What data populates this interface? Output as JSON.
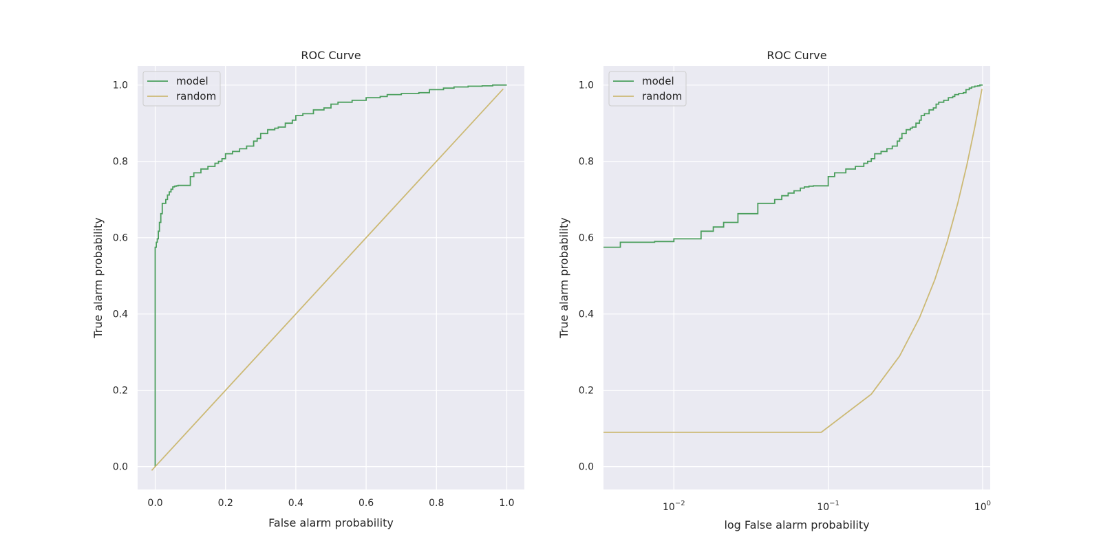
{
  "chart_data": [
    {
      "type": "line",
      "title": "ROC Curve",
      "xlabel": "False alarm probability",
      "ylabel": "True alarm probability",
      "xscale": "linear",
      "xlim": [
        -0.05,
        1.05
      ],
      "ylim": [
        -0.06,
        1.05
      ],
      "xticks": [
        0.0,
        0.2,
        0.4,
        0.6,
        0.8,
        1.0
      ],
      "xtick_labels": [
        "0.0",
        "0.2",
        "0.4",
        "0.6",
        "0.8",
        "1.0"
      ],
      "yticks": [
        0.0,
        0.2,
        0.4,
        0.6,
        0.8,
        1.0
      ],
      "ytick_labels": [
        "0.0",
        "0.2",
        "0.4",
        "0.6",
        "0.8",
        "1.0"
      ],
      "grid": true,
      "legend_position": "upper left",
      "series": [
        {
          "name": "model",
          "color": "#4a9e5c",
          "step": true,
          "x": [
            0.0,
            0.0,
            0.003,
            0.006,
            0.009,
            0.012,
            0.016,
            0.02,
            0.03,
            0.035,
            0.04,
            0.045,
            0.05,
            0.055,
            0.06,
            0.065,
            0.07,
            0.1,
            0.11,
            0.13,
            0.15,
            0.17,
            0.18,
            0.19,
            0.2,
            0.22,
            0.24,
            0.26,
            0.28,
            0.29,
            0.3,
            0.32,
            0.34,
            0.35,
            0.37,
            0.39,
            0.4,
            0.42,
            0.45,
            0.48,
            0.5,
            0.52,
            0.56,
            0.6,
            0.64,
            0.66,
            0.7,
            0.75,
            0.78,
            0.82,
            0.85,
            0.89,
            0.93,
            0.96,
            1.0
          ],
          "y": [
            0.0,
            0.575,
            0.588,
            0.597,
            0.617,
            0.64,
            0.663,
            0.69,
            0.7,
            0.712,
            0.72,
            0.727,
            0.733,
            0.735,
            0.736,
            0.737,
            0.737,
            0.76,
            0.77,
            0.78,
            0.787,
            0.795,
            0.8,
            0.807,
            0.82,
            0.826,
            0.833,
            0.84,
            0.853,
            0.86,
            0.873,
            0.883,
            0.887,
            0.89,
            0.9,
            0.908,
            0.92,
            0.925,
            0.935,
            0.94,
            0.95,
            0.955,
            0.96,
            0.967,
            0.97,
            0.975,
            0.978,
            0.98,
            0.988,
            0.992,
            0.995,
            0.997,
            0.998,
            1.0,
            1.0
          ]
        },
        {
          "name": "random",
          "color": "#ccb974",
          "step": false,
          "x": [
            -0.01,
            0.99
          ],
          "y": [
            -0.01,
            0.99
          ]
        }
      ]
    },
    {
      "type": "line",
      "title": "ROC Curve",
      "xlabel": "log False alarm probability",
      "ylabel": "True alarm probability",
      "xscale": "log",
      "xlim": [
        0.0035,
        1.12
      ],
      "ylim": [
        -0.06,
        1.05
      ],
      "xticks": [
        0.01,
        0.1,
        1.0
      ],
      "xtick_labels": [
        {
          "base": "10",
          "exp": "−2"
        },
        {
          "base": "10",
          "exp": "−1"
        },
        {
          "base": "10",
          "exp": "0"
        }
      ],
      "yticks": [
        0.0,
        0.2,
        0.4,
        0.6,
        0.8,
        1.0
      ],
      "ytick_labels": [
        "0.0",
        "0.2",
        "0.4",
        "0.6",
        "0.8",
        "1.0"
      ],
      "grid": true,
      "legend_position": "upper left",
      "series": [
        {
          "name": "model",
          "color": "#4a9e5c",
          "step": true,
          "x": [
            0.0035,
            0.0045,
            0.0075,
            0.01,
            0.015,
            0.018,
            0.021,
            0.026,
            0.035,
            0.045,
            0.05,
            0.055,
            0.06,
            0.066,
            0.07,
            0.075,
            0.08,
            0.1,
            0.11,
            0.13,
            0.15,
            0.17,
            0.18,
            0.19,
            0.2,
            0.22,
            0.24,
            0.26,
            0.28,
            0.29,
            0.3,
            0.32,
            0.34,
            0.35,
            0.37,
            0.39,
            0.4,
            0.42,
            0.45,
            0.48,
            0.5,
            0.52,
            0.56,
            0.6,
            0.64,
            0.66,
            0.7,
            0.75,
            0.78,
            0.82,
            0.85,
            0.89,
            0.93,
            0.96,
            1.0
          ],
          "y": [
            0.575,
            0.588,
            0.59,
            0.597,
            0.617,
            0.628,
            0.64,
            0.663,
            0.69,
            0.7,
            0.71,
            0.717,
            0.723,
            0.73,
            0.733,
            0.735,
            0.736,
            0.76,
            0.77,
            0.78,
            0.787,
            0.795,
            0.8,
            0.807,
            0.82,
            0.826,
            0.833,
            0.84,
            0.853,
            0.86,
            0.873,
            0.883,
            0.887,
            0.89,
            0.9,
            0.908,
            0.92,
            0.925,
            0.935,
            0.94,
            0.95,
            0.955,
            0.96,
            0.967,
            0.97,
            0.975,
            0.978,
            0.98,
            0.988,
            0.992,
            0.995,
            0.997,
            0.998,
            1.0,
            1.0
          ]
        },
        {
          "name": "random",
          "color": "#ccb974",
          "step": false,
          "x": [
            0.0035,
            0.09,
            0.19,
            0.29,
            0.39,
            0.49,
            0.59,
            0.69,
            0.79,
            0.89,
            0.99
          ],
          "y": [
            0.09,
            0.09,
            0.19,
            0.29,
            0.39,
            0.49,
            0.59,
            0.69,
            0.79,
            0.89,
            0.99
          ]
        }
      ]
    }
  ]
}
